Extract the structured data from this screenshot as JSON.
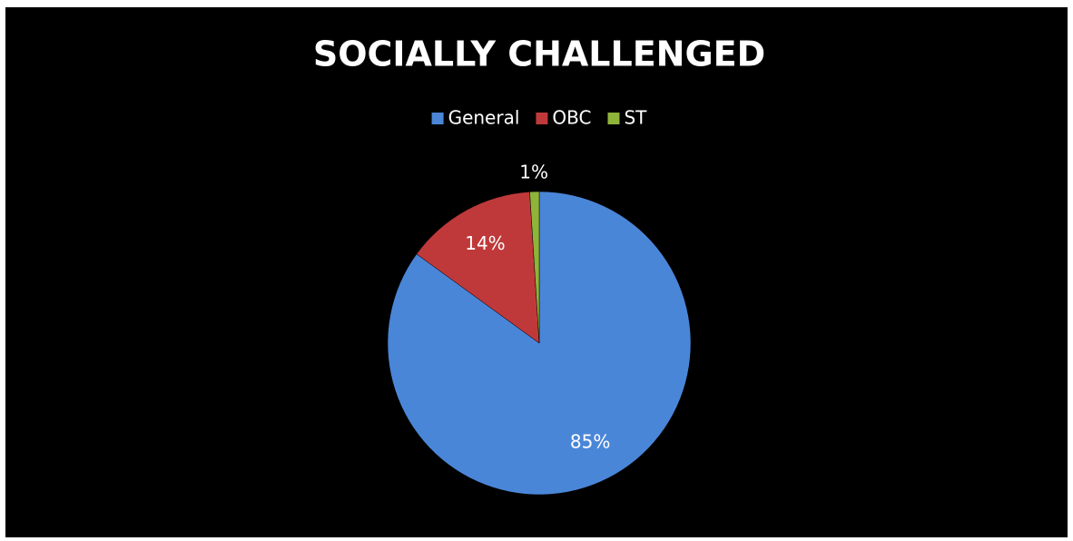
{
  "chart_data": {
    "type": "pie",
    "title": "SOCIALLY CHALLENGED",
    "categories": [
      "General",
      "OBC",
      "ST"
    ],
    "values": [
      85,
      14,
      1
    ],
    "value_labels": [
      "85%",
      "14%",
      "1%"
    ],
    "colors": [
      "#4a86d8",
      "#c0393a",
      "#8fb43a"
    ],
    "legend": "top"
  }
}
